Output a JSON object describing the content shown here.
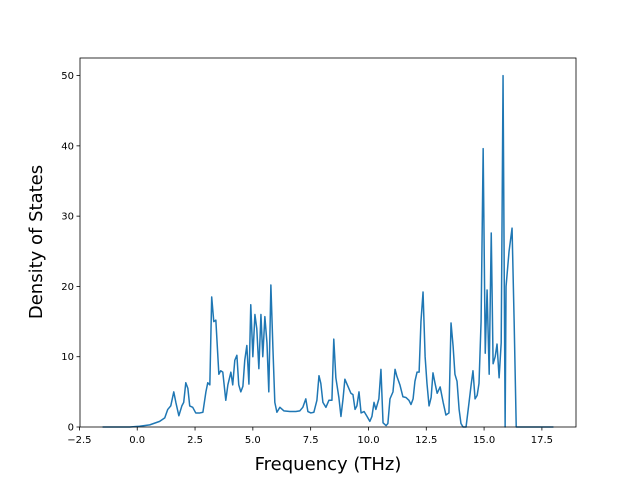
{
  "chart_data": {
    "type": "line",
    "x_label": "Frequency (THz)",
    "y_label": "Density of States",
    "xlim": [
      -2.475,
      18.975
    ],
    "ylim": [
      0,
      52.5
    ],
    "xticks": [
      {
        "value": -2.5,
        "label": "−2.5"
      },
      {
        "value": 0,
        "label": "0.0"
      },
      {
        "value": 2.5,
        "label": "2.5"
      },
      {
        "value": 5,
        "label": "5.0"
      },
      {
        "value": 7.5,
        "label": "7.5"
      },
      {
        "value": 10,
        "label": "10.0"
      },
      {
        "value": 12.5,
        "label": "12.5"
      },
      {
        "value": 15,
        "label": "15.0"
      },
      {
        "value": 17.5,
        "label": "17.5"
      }
    ],
    "yticks": [
      0,
      10,
      20,
      30,
      40,
      50
    ],
    "grid": false,
    "x": [
      -1.5,
      -0.32,
      0.1,
      0.54,
      0.97,
      1.19,
      1.32,
      1.45,
      1.58,
      1.67,
      1.8,
      1.93,
      2.01,
      2.1,
      2.19,
      2.27,
      2.4,
      2.53,
      2.71,
      2.84,
      2.97,
      3.05,
      3.14,
      3.22,
      3.31,
      3.4,
      3.53,
      3.61,
      3.7,
      3.83,
      3.92,
      4.05,
      4.13,
      4.22,
      4.31,
      4.39,
      4.48,
      4.57,
      4.65,
      4.74,
      4.83,
      4.91,
      5.0,
      5.09,
      5.17,
      5.26,
      5.35,
      5.43,
      5.52,
      5.61,
      5.69,
      5.78,
      5.87,
      5.95,
      6.04,
      6.17,
      6.34,
      6.6,
      6.86,
      7.03,
      7.16,
      7.29,
      7.38,
      7.51,
      7.64,
      7.77,
      7.86,
      7.94,
      8.03,
      8.16,
      8.29,
      8.42,
      8.5,
      8.59,
      8.72,
      8.81,
      8.9,
      8.98,
      9.11,
      9.24,
      9.33,
      9.42,
      9.5,
      9.59,
      9.68,
      9.81,
      9.94,
      10.06,
      10.15,
      10.24,
      10.32,
      10.45,
      10.54,
      10.63,
      10.76,
      10.84,
      10.93,
      11.06,
      11.15,
      11.23,
      11.36,
      11.49,
      11.62,
      11.75,
      11.84,
      11.93,
      12.01,
      12.1,
      12.19,
      12.27,
      12.36,
      12.45,
      12.53,
      12.62,
      12.71,
      12.79,
      12.88,
      12.97,
      13.1,
      13.23,
      13.35,
      13.48,
      13.57,
      13.66,
      13.74,
      13.83,
      13.92,
      14.0,
      14.09,
      14.22,
      14.35,
      14.44,
      14.52,
      14.61,
      14.7,
      14.78,
      14.87,
      14.96,
      15.05,
      15.13,
      15.22,
      15.31,
      15.39,
      15.48,
      15.56,
      15.65,
      15.74,
      15.82,
      15.91,
      15.95,
      16.08,
      16.21,
      16.3,
      16.39,
      16.99,
      18.0
    ],
    "series": [
      {
        "color": "#1f77b4",
        "values": [
          0,
          0,
          0.1,
          0.3,
          0.8,
          1.3,
          2.5,
          3,
          5,
          3.5,
          1.6,
          3,
          3.5,
          6.3,
          5.5,
          3,
          2.8,
          2,
          2,
          2.1,
          5,
          6.3,
          6,
          18.5,
          15,
          15.2,
          7.5,
          8,
          7.8,
          3.8,
          6,
          7.8,
          6,
          9.5,
          10.2,
          6,
          5,
          5.8,
          9.5,
          11.6,
          6.1,
          17.4,
          10,
          16,
          14,
          8.3,
          16,
          10,
          15.7,
          12,
          5,
          20.2,
          11,
          3.5,
          2.1,
          2.8,
          2.3,
          2.2,
          2.2,
          2.3,
          2.8,
          4,
          2.2,
          2,
          2.1,
          3.8,
          7.3,
          6.2,
          3.5,
          2.8,
          3.8,
          3.8,
          12.5,
          7,
          4.2,
          1.5,
          4,
          6.8,
          5.8,
          4.8,
          4.6,
          2.5,
          3,
          5,
          2,
          2.2,
          1.5,
          0.8,
          1.5,
          3.5,
          2.5,
          4,
          8.2,
          0.6,
          0.2,
          0.5,
          4,
          5,
          8.2,
          7.2,
          6,
          4.3,
          4.2,
          3.8,
          3.2,
          4,
          6.5,
          7.8,
          7.8,
          15,
          19.2,
          10,
          6.2,
          3,
          4.2,
          7.7,
          6.2,
          4.8,
          5.7,
          3.5,
          1.7,
          2,
          14.8,
          11.5,
          7.5,
          6.5,
          2.5,
          0.5,
          0,
          0,
          3.5,
          6,
          8,
          4,
          4.5,
          6.2,
          15,
          39.6,
          10.5,
          19.5,
          7.5,
          27.6,
          9,
          10,
          11.8,
          7,
          12,
          50,
          0,
          20,
          25,
          28.3,
          15,
          0,
          0,
          0
        ]
      }
    ]
  }
}
